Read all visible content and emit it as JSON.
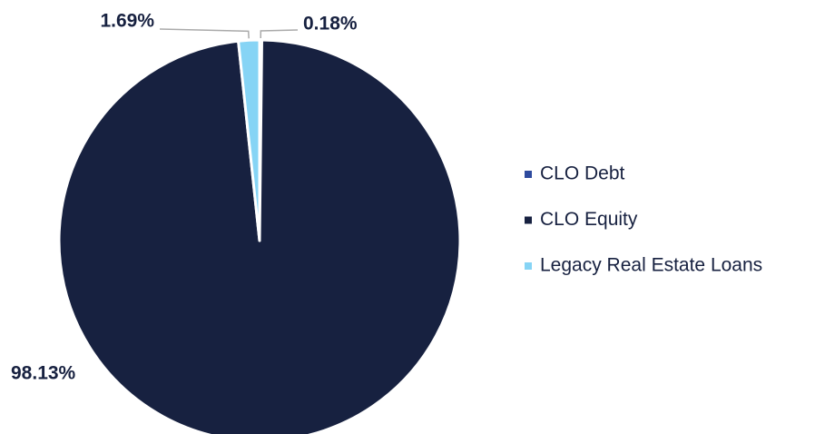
{
  "chart_data": {
    "type": "pie",
    "categories": [
      "CLO Debt",
      "CLO Equity",
      "Legacy Real Estate Loans"
    ],
    "values": [
      0.18,
      98.13,
      1.69
    ],
    "value_labels": [
      "0.18%",
      "98.13%",
      "1.69%"
    ],
    "colors": [
      "#2e4a9e",
      "#172140",
      "#86d4f5"
    ],
    "legend": "right"
  }
}
